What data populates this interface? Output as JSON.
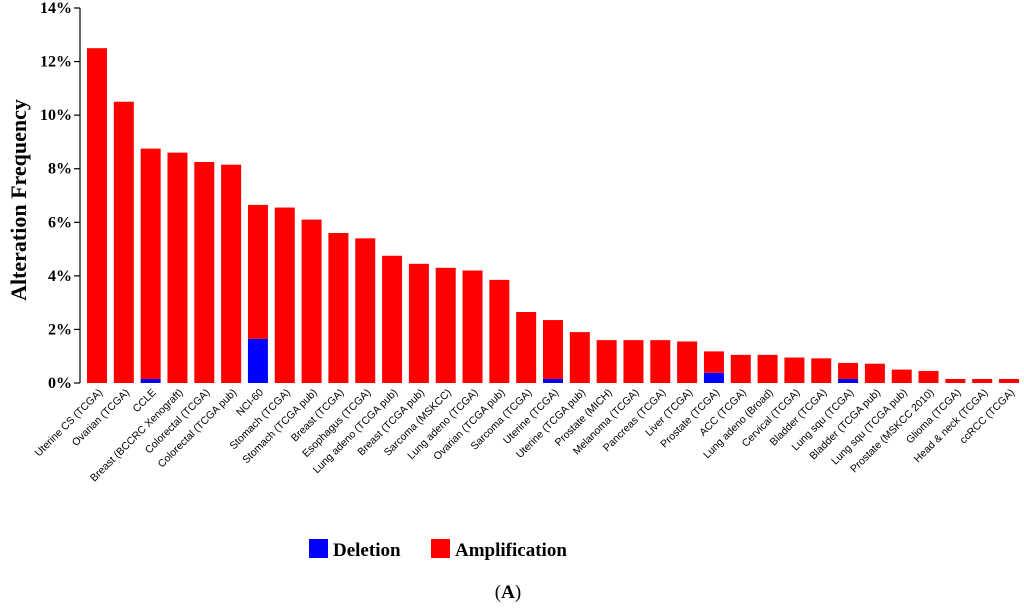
{
  "chart_data": {
    "type": "bar",
    "stacked": true,
    "ylabel": "Alteration Frequency",
    "xlabel": "",
    "ylim": [
      0,
      14
    ],
    "yticks": [
      "0%",
      "2%",
      "4%",
      "6%",
      "8%",
      "10%",
      "12%",
      "14%"
    ],
    "grid": false,
    "legend_position": "bottom",
    "categories": [
      "Uterine CS (TCGA)",
      "Ovarian (TCGA)",
      "CCLE",
      "Breast (BCCRC Xenograft)",
      "Colorectal (TCGA)",
      "Colorectal (TCGA pub)",
      "NCI-60",
      "Stomach (TCGA)",
      "Stomach (TCGA pub)",
      "Breast (TCGA)",
      "Esophagus (TCGA)",
      "Lung adeno (TCGA pub)",
      "Breast (TCGA pub)",
      "Sarcoma (MSKCC)",
      "Lung adeno (TCGA)",
      "Ovarian (TCGA pub)",
      "Sarcoma (TCGA)",
      "Uterine (TCGA)",
      "Uterine (TCGA pub)",
      "Prostate (MICH)",
      "Melanoma (TCGA)",
      "Pancreas (TCGA)",
      "Liver (TCGA)",
      "Prostate (TCGA)",
      "ACC (TCGA)",
      "Lung adeno (Broad)",
      "Cervical (TCGA)",
      "Bladder (TCGA)",
      "Lung squ (TCGA)",
      "Bladder (TCGA pub)",
      "Lung squ (TCGA pub)",
      "Prostate (MSKCC 2010)",
      "Glioma (TCGA)",
      "Head & neck (TCGA)",
      "ccRCC (TCGA)"
    ],
    "series": [
      {
        "name": "Deletion",
        "color": "#0000ff",
        "values": [
          0,
          0,
          0.15,
          0,
          0,
          0,
          1.65,
          0,
          0,
          0,
          0,
          0,
          0,
          0,
          0,
          0,
          0,
          0.15,
          0,
          0,
          0,
          0,
          0,
          0.38,
          0,
          0,
          0,
          0,
          0.15,
          0,
          0,
          0,
          0,
          0,
          0
        ]
      },
      {
        "name": "Amplification",
        "color": "#ff0000",
        "values": [
          12.5,
          10.5,
          8.6,
          8.6,
          8.25,
          8.15,
          5.0,
          6.55,
          6.1,
          5.6,
          5.4,
          4.75,
          4.45,
          4.3,
          4.2,
          3.85,
          2.65,
          2.2,
          1.9,
          1.6,
          1.6,
          1.6,
          1.55,
          0.8,
          1.05,
          1.05,
          0.95,
          0.92,
          0.6,
          0.72,
          0.5,
          0.45,
          0.15,
          0.15,
          0.15
        ]
      }
    ]
  },
  "legend": {
    "items": [
      {
        "label": "Deletion",
        "color": "#0000ff"
      },
      {
        "label": "Amplification",
        "color": "#ff0000"
      }
    ]
  },
  "panel_label": {
    "open": "(",
    "letter": "A",
    "close": ")"
  }
}
